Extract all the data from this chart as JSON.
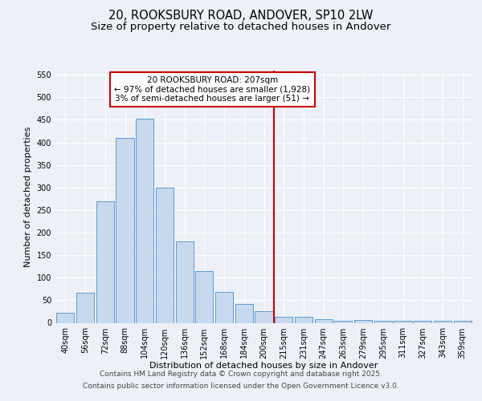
{
  "title": "20, ROOKSBURY ROAD, ANDOVER, SP10 2LW",
  "subtitle": "Size of property relative to detached houses in Andover",
  "xlabel": "Distribution of detached houses by size in Andover",
  "ylabel": "Number of detached properties",
  "bar_labels": [
    "40sqm",
    "56sqm",
    "72sqm",
    "88sqm",
    "104sqm",
    "120sqm",
    "136sqm",
    "152sqm",
    "168sqm",
    "184sqm",
    "200sqm",
    "215sqm",
    "231sqm",
    "247sqm",
    "263sqm",
    "279sqm",
    "295sqm",
    "311sqm",
    "327sqm",
    "343sqm",
    "359sqm"
  ],
  "bar_values": [
    22,
    67,
    270,
    410,
    453,
    300,
    181,
    115,
    68,
    42,
    25,
    14,
    13,
    8,
    5,
    6,
    5,
    4,
    4,
    4,
    4
  ],
  "bar_color": "#c9d9ed",
  "bar_edge_color": "#5b9bd5",
  "vline_x": 10.5,
  "vline_color": "#cc0000",
  "annotation_line1": "20 ROOKSBURY ROAD: 207sqm",
  "annotation_line2": "← 97% of detached houses are smaller (1,928)",
  "annotation_line3": "3% of semi-detached houses are larger (51) →",
  "annotation_box_color": "#ffffff",
  "annotation_box_edge": "#cc0000",
  "ylim": [
    0,
    560
  ],
  "yticks": [
    0,
    50,
    100,
    150,
    200,
    250,
    300,
    350,
    400,
    450,
    500,
    550
  ],
  "footer_line1": "Contains HM Land Registry data © Crown copyright and database right 2025.",
  "footer_line2": "Contains public sector information licensed under the Open Government Licence v3.0.",
  "bg_color": "#edf1f7",
  "plot_bg_color": "#edf1f7",
  "title_fontsize": 10.5,
  "subtitle_fontsize": 9.5,
  "axis_label_fontsize": 8,
  "tick_fontsize": 7,
  "annotation_fontsize": 7.5,
  "footer_fontsize": 6.5
}
